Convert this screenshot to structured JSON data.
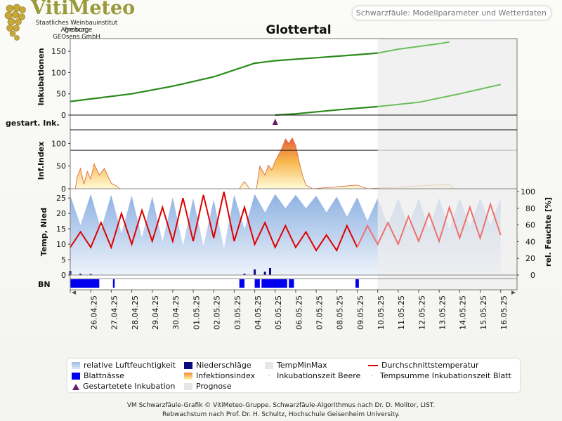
{
  "header": {
    "brand": "VitiMeteo",
    "org_lines": [
      "Staatliches Weinbauinstitut Freiburg",
      "Agroscope",
      "GEOsens GmbH"
    ],
    "subtitle": "Schwarzfäule: Modellparameter und Wetterdaten"
  },
  "chart_data": [
    {
      "panel": "inkubationen",
      "type": "line",
      "title": "Glottertal",
      "ylabel": "Inkubationen",
      "ylim": [
        0,
        180
      ],
      "yticks": [
        0,
        50,
        100,
        150
      ],
      "x_dates": [
        "26.04.25",
        "27.04.25",
        "28.04.25",
        "29.04.25",
        "30.04.25",
        "01.05.25",
        "02.05.25",
        "03.05.25",
        "04.05.25",
        "05.05.25",
        "06.05.25",
        "07.05.25",
        "08.05.25",
        "09.05.25",
        "10.05.25",
        "11.05.25",
        "12.05.25",
        "13.05.25",
        "14.05.25",
        "15.05.25",
        "16.05.25"
      ],
      "forecast_start": "10.05.25",
      "series": [
        {
          "name": "Tempsumme Inkubationszeit Blatt",
          "x": [
            "25.04.25",
            "26.04.25",
            "28.04.25",
            "30.04.25",
            "02.05.25",
            "04.05.25",
            "05.05.25",
            "07.05.25",
            "09.05.25",
            "10.05.25",
            "11.05.25",
            "13.05.25",
            "13.05.25 12h"
          ],
          "y": [
            32,
            38,
            50,
            68,
            90,
            122,
            128,
            135,
            142,
            146,
            155,
            168,
            172
          ]
        },
        {
          "name": "Inkubationszeit Beere",
          "x": [
            "05.05.25",
            "06.05.25",
            "08.05.25",
            "10.05.25",
            "12.05.25",
            "14.05.25",
            "16.05.25"
          ],
          "y": [
            0,
            3,
            12,
            20,
            30,
            50,
            72
          ]
        }
      ]
    },
    {
      "panel": "gestartete-inkubation",
      "type": "scatter",
      "ylabel": "gestart. Ink.",
      "points": [
        {
          "x": "05.05.25",
          "label": "Gestartetete Inkubation"
        }
      ]
    },
    {
      "panel": "infektionsindex",
      "type": "area",
      "ylabel": "Inf.Index",
      "ylim": [
        0,
        130
      ],
      "yticks": [
        0,
        50,
        100
      ],
      "threshold": 85,
      "series": [
        {
          "name": "Infektionsindex",
          "x": [
            "25.04.25 06h",
            "25.04.25 08h",
            "25.04.25 12h",
            "25.04.25 16h",
            "25.04.25 20h",
            "26.04.25 00h",
            "26.04.25 04h",
            "26.04.25 10h",
            "26.04.25 16h",
            "27.04.25 00h",
            "27.04.25 06h",
            "27.04.25 10h",
            "03.05.25 06h",
            "03.05.25 12h",
            "03.05.25 18h",
            "04.05.25 02h",
            "04.05.25 06h",
            "04.05.25 12h",
            "04.05.25 16h",
            "04.05.25 20h",
            "05.05.25 00h",
            "05.05.25 04h",
            "05.05.25 08h",
            "05.05.25 12h",
            "05.05.25 16h",
            "05.05.25 20h",
            "06.05.25 00h",
            "06.05.25 04h",
            "06.05.25 08h",
            "06.05.25 12h",
            "06.05.25 20h",
            "09.05.25 00h",
            "09.05.25 12h",
            "13.05.25 12h",
            "13.05.25 18h"
          ],
          "y": [
            0,
            25,
            45,
            10,
            38,
            22,
            55,
            30,
            45,
            12,
            6,
            0,
            0,
            16,
            0,
            0,
            50,
            30,
            52,
            42,
            60,
            75,
            90,
            110,
            100,
            112,
            95,
            60,
            30,
            8,
            0,
            8,
            0,
            10,
            0
          ]
        }
      ]
    },
    {
      "panel": "temperatur-feuchte",
      "type": "line",
      "ylabel": "Temp, Nied",
      "ylabel_right": "rel. Feuchte [%]",
      "ylim": [
        0,
        28
      ],
      "yticks": [
        0,
        5,
        10,
        15,
        20,
        25
      ],
      "ylim_right": [
        0,
        100
      ],
      "yticks_right": [
        0,
        20,
        40,
        60,
        80,
        100
      ],
      "series": [
        {
          "name": "Durchschnittstemperatur",
          "x_days": [
            0,
            0.5,
            1,
            1.5,
            2,
            2.5,
            3,
            3.5,
            4,
            4.5,
            5,
            5.5,
            6,
            6.5,
            7,
            7.5,
            8,
            8.5,
            9,
            9.5,
            10,
            10.5,
            11,
            11.5,
            12,
            12.5,
            13,
            13.5,
            14,
            14.5,
            15,
            15.5,
            16,
            16.5,
            17,
            17.5,
            18,
            18.5,
            19,
            19.5,
            20,
            20.5,
            21
          ],
          "y": [
            9,
            14,
            9,
            17,
            9,
            20,
            10,
            21,
            11,
            22,
            11,
            25,
            11,
            26,
            12,
            27,
            11,
            22,
            10,
            17,
            9,
            16,
            9,
            14,
            8,
            13,
            8,
            16,
            9,
            16,
            10,
            17,
            10,
            19,
            11,
            20,
            11,
            22,
            12,
            22,
            12,
            23,
            13
          ],
          "forecast_from_day": 14
        },
        {
          "name": "relative Luftfeuchtigkeit",
          "x_days": [
            0,
            0.5,
            1,
            1.5,
            2,
            2.5,
            3,
            3.5,
            4,
            4.5,
            5,
            5.5,
            6,
            6.5,
            7,
            7.5,
            8,
            8.5,
            9,
            9.5,
            10,
            10.5,
            11,
            11.5,
            12,
            12.5,
            13,
            13.5,
            14,
            14.5,
            15,
            15.5,
            16,
            16.5,
            17,
            17.5,
            18,
            18.5,
            19,
            19.5,
            20,
            20.5,
            21
          ],
          "y": [
            95,
            60,
            97,
            55,
            96,
            50,
            95,
            45,
            94,
            40,
            93,
            35,
            92,
            35,
            90,
            32,
            96,
            55,
            97,
            75,
            97,
            80,
            96,
            80,
            95,
            75,
            94,
            70,
            93,
            65,
            92,
            60,
            92,
            58,
            92,
            55,
            92,
            55,
            92,
            58,
            92,
            60,
            92
          ]
        },
        {
          "name": "Niederschläge",
          "x": [
            "25.04.25",
            "25.04.25 12h",
            "26.04.25",
            "03.05.25 12h",
            "04.05.25",
            "04.05.25 12h",
            "04.05.25 18h"
          ],
          "y": [
            1.5,
            0.5,
            0.4,
            0.5,
            2,
            1.2,
            2.5
          ]
        }
      ]
    },
    {
      "panel": "blattnaesse",
      "type": "bar",
      "ylabel": "BN",
      "series": [
        {
          "name": "Blattnässe",
          "periods": [
            [
              "25.04.25 00h",
              "26.04.25 10h"
            ],
            [
              "27.04.25 02h",
              "27.04.25 04h"
            ],
            [
              "03.05.25 06h",
              "03.05.25 12h"
            ],
            [
              "04.05.25 00h",
              "04.05.25 06h"
            ],
            [
              "04.05.25 08h",
              "05.05.25 14h"
            ],
            [
              "05.05.25 16h",
              "05.05.25 22h"
            ],
            [
              "08.05.25 22h",
              "09.05.25 02h"
            ]
          ]
        }
      ]
    }
  ],
  "legend": [
    {
      "label": "relative Luftfeuchtigkeit",
      "swatch": "humidity",
      "color": "#9bbbe6"
    },
    {
      "label": "Niederschläge",
      "swatch": "rain",
      "color": "#0b0b80"
    },
    {
      "label": "TempMinMax",
      "swatch": "tempminmax",
      "color": "#e6e6e6"
    },
    {
      "label": "Durchschnittstemperatur",
      "swatch": "line",
      "color": "#e00000"
    },
    {
      "label": "Blattnässe",
      "swatch": "wetness",
      "color": "#0000ee"
    },
    {
      "label": "Infektionsindex",
      "swatch": "infection",
      "color": "#f4a94a"
    },
    {
      "label": "Inkubationszeit Beere",
      "swatch": "dot",
      "color": "#e04040"
    },
    {
      "label": "Tempsumme Inkubationszeit Blatt",
      "swatch": "dot",
      "color": "#3a9a2a"
    },
    {
      "label": "Gestartetete Inkubation",
      "swatch": "triangle",
      "color": "#6a1a6a"
    },
    {
      "label": "Prognose",
      "swatch": "forecast",
      "color": "#e6e6e6"
    }
  ],
  "footer": [
    "VM Schwarzfäule-Grafik © VitiMeteo-Gruppe. Schwarzfäule-Algorithmus nach Dr. D. Molitor, LIST.",
    "Rebwachstum nach Prof. Dr. H. Schultz, Hochschule Geisenheim University."
  ],
  "colors": {
    "incubation": "#2a8a1a",
    "forecast_bg": "#ececec",
    "temp": "#e00000",
    "rain": "#0b0b80",
    "wetness": "#0000ee"
  }
}
